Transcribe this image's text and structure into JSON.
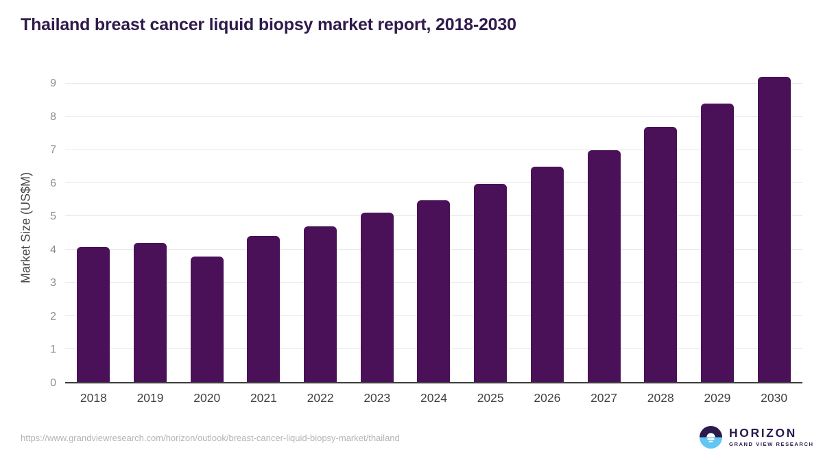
{
  "header": {
    "title": "Thailand breast cancer liquid biopsy market report, 2018-2030"
  },
  "chart_data": {
    "type": "bar",
    "title": "Thailand breast cancer liquid biopsy market report, 2018-2030",
    "categories": [
      "2018",
      "2019",
      "2020",
      "2021",
      "2022",
      "2023",
      "2024",
      "2025",
      "2026",
      "2027",
      "2028",
      "2029",
      "2030"
    ],
    "values": [
      4.08,
      4.19,
      3.78,
      4.41,
      4.69,
      5.1,
      5.49,
      5.98,
      6.5,
      7.0,
      7.69,
      8.39,
      9.21
    ],
    "xlabel": "",
    "ylabel": "Market Size (US$M)",
    "ylim": [
      0,
      9.35
    ],
    "yticks": [
      0,
      1,
      2,
      3,
      4,
      5,
      6,
      7,
      8,
      9
    ],
    "grid": true,
    "legend": false,
    "bar_color": "#4a1158"
  },
  "footer": {
    "source_url": "https://www.grandviewresearch.com/horizon/outlook/breast-cancer-liquid-biopsy-market/thailand",
    "logo": {
      "name": "HORIZON",
      "subtitle": "GRAND VIEW RESEARCH"
    }
  },
  "colors": {
    "bar_purple": "#4a1158",
    "title_purple": "#2f1a4b",
    "gridline_gray": "#e7e7ea",
    "axis_gray": "#3d3d3d",
    "ytick_gray": "#8d8d8d",
    "xtick_gray": "#434343",
    "url_gray": "#b4b4b4",
    "logo_purple": "#2c1a4d",
    "logo_blue": "#62c6f2"
  }
}
